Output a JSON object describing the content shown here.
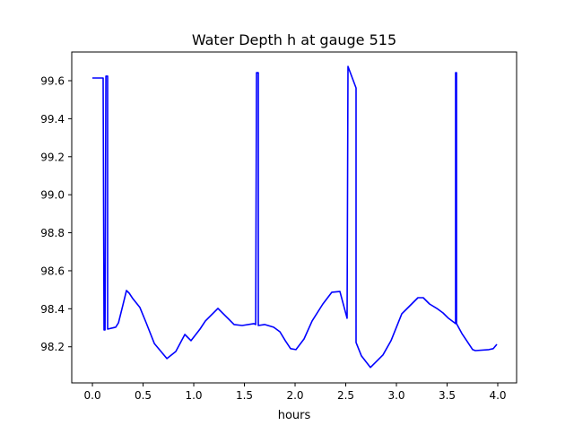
{
  "chart_data": {
    "type": "line",
    "title": "Water Depth h at gauge 515",
    "xlabel": "hours",
    "ylabel": "",
    "xlim": [
      -0.204,
      4.186
    ],
    "ylim": [
      98.01,
      99.751
    ],
    "grid": false,
    "xticks": [
      0.0,
      0.5,
      1.0,
      1.5,
      2.0,
      2.5,
      3.0,
      3.5,
      4.0
    ],
    "xtick_labels": [
      "0.0",
      "0.5",
      "1.0",
      "1.5",
      "2.0",
      "2.5",
      "3.0",
      "3.5",
      "4.0"
    ],
    "yticks": [
      98.2,
      98.4,
      98.6,
      98.8,
      99.0,
      99.2,
      99.4,
      99.6
    ],
    "ytick_labels": [
      "98.2",
      "98.4",
      "98.6",
      "98.8",
      "99.0",
      "99.2",
      "99.4",
      "99.6"
    ],
    "series": [
      {
        "name": "h",
        "color": "#0000ff",
        "x": [
          0,
          0.106,
          0.115,
          0.124,
          0.133,
          0.15,
          0.15,
          0.23,
          0.257,
          0.301,
          0.336,
          0.363,
          0.398,
          0.469,
          0.531,
          0.611,
          0.735,
          0.823,
          0.912,
          0.973,
          1.062,
          1.115,
          1.239,
          1.327,
          1.398,
          1.478,
          1.593,
          1.611,
          1.619,
          1.637,
          1.637,
          1.699,
          1.788,
          1.85,
          1.903,
          1.956,
          2.009,
          2.088,
          2.168,
          2.274,
          2.363,
          2.442,
          2.513,
          2.522,
          2.602,
          2.602,
          2.655,
          2.743,
          2.867,
          2.947,
          3.053,
          3.124,
          3.212,
          3.265,
          3.327,
          3.398,
          3.46,
          3.513,
          3.584,
          3.584,
          3.593,
          3.593,
          3.646,
          3.752,
          3.779,
          3.912,
          3.956,
          3.991
        ],
        "y": [
          99.614,
          99.614,
          98.289,
          98.289,
          99.624,
          99.624,
          98.293,
          98.303,
          98.326,
          98.421,
          98.496,
          98.482,
          98.454,
          98.407,
          98.326,
          98.217,
          98.138,
          98.175,
          98.265,
          98.232,
          98.293,
          98.336,
          98.402,
          98.355,
          98.317,
          98.312,
          98.322,
          98.317,
          99.642,
          99.642,
          98.312,
          98.317,
          98.303,
          98.279,
          98.232,
          98.19,
          98.185,
          98.241,
          98.336,
          98.425,
          98.487,
          98.491,
          98.35,
          99.675,
          99.562,
          98.223,
          98.152,
          98.091,
          98.157,
          98.232,
          98.374,
          98.411,
          98.458,
          98.458,
          98.425,
          98.402,
          98.378,
          98.35,
          98.322,
          99.642,
          99.642,
          98.322,
          98.27,
          98.185,
          98.18,
          98.185,
          98.19,
          98.213
        ]
      }
    ]
  }
}
